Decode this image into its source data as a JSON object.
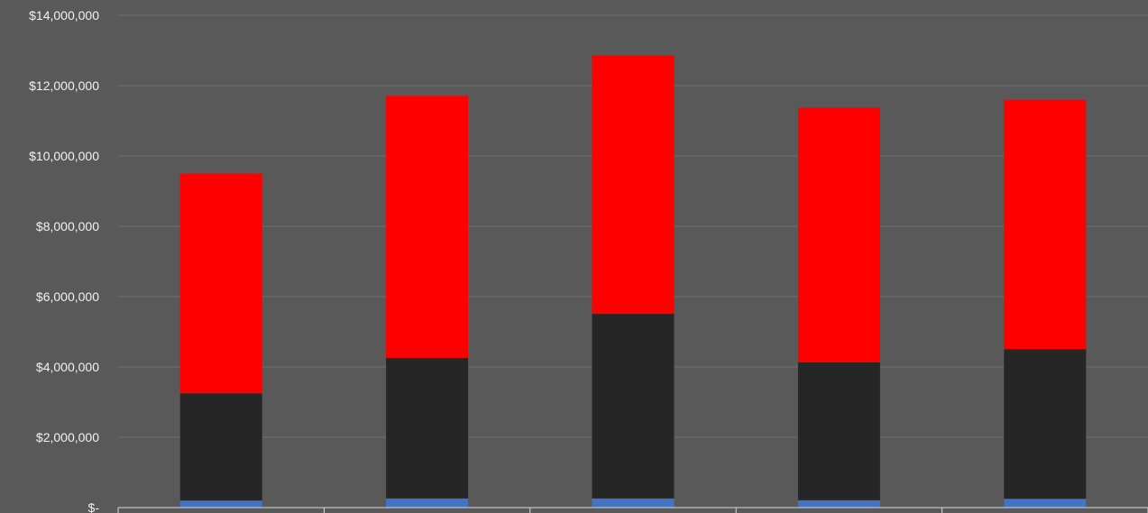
{
  "chart_data": {
    "type": "bar",
    "stacked": true,
    "title": "",
    "xlabel": "",
    "ylabel": "",
    "categories": [
      "",
      "",
      "",
      "",
      ""
    ],
    "ylim": [
      0,
      14000000
    ],
    "yticks": [
      0,
      2000000,
      4000000,
      6000000,
      8000000,
      10000000,
      12000000,
      14000000
    ],
    "ytick_labels": [
      "$-",
      "$2,000,000",
      "$4,000,000",
      "$6,000,000",
      "$8,000,000",
      "$10,000,000",
      "$12,000,000",
      "$14,000,000"
    ],
    "grid": true,
    "legend": "none",
    "series": [
      {
        "values": [
          200000,
          260000,
          260000,
          210000,
          250000
        ],
        "color": "#4472c4"
      },
      {
        "values": [
          3050000,
          4000000,
          5250000,
          3920000,
          4260000
        ],
        "color": "#262626"
      },
      {
        "values": [
          6250000,
          7450000,
          7350000,
          7240000,
          7090000
        ],
        "color": "#ff0000"
      }
    ]
  }
}
